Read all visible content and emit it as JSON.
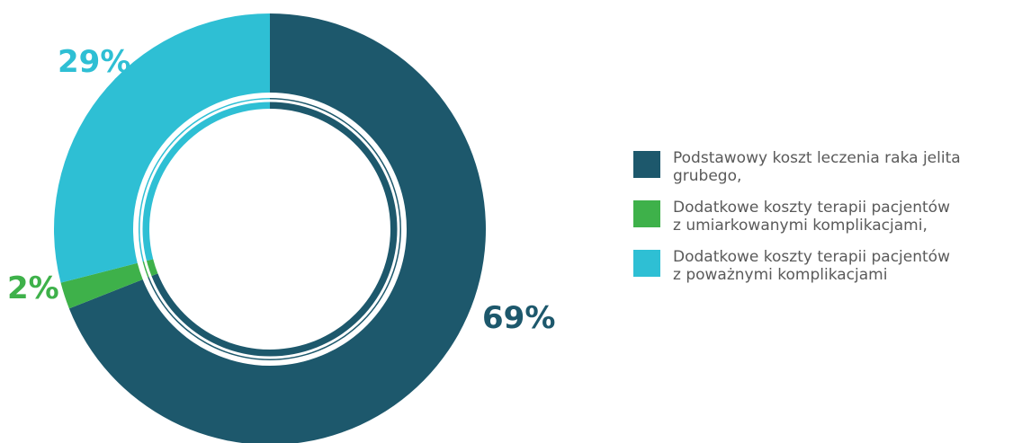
{
  "chart_data": {
    "type": "pie",
    "variant": "donut",
    "title": "",
    "categories": [
      "Podstawowy koszt leczenia raka jelita\ngrubego,",
      "Dodatkowe koszty terapii pacjentów\nz umiarkowanymi komplikacjami,",
      "Dodatkowe koszty terapii pacjentów\nz poważnymi komplikacjami"
    ],
    "values": [
      69,
      2,
      29
    ],
    "value_labels": [
      "69%",
      "2%",
      "29%"
    ],
    "colors": [
      "#1d586c",
      "#3eb14a",
      "#2ebfd4"
    ],
    "legend_position": "right"
  }
}
